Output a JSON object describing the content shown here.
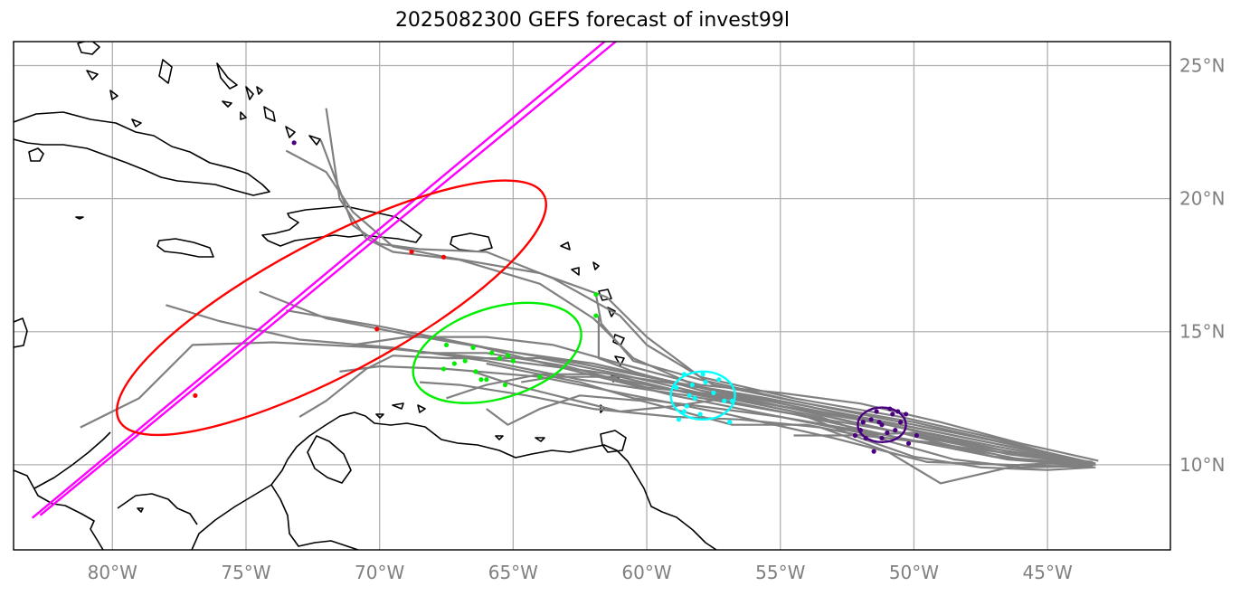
{
  "title": "2025082300 GEFS forecast of invest99l",
  "extent": {
    "lon_min": -83.7,
    "lon_max": -40.4,
    "lat_min": 6.8,
    "lat_max": 25.9
  },
  "lon_ticks": [
    {
      "value": -80,
      "label": "80°W"
    },
    {
      "value": -75,
      "label": "75°W"
    },
    {
      "value": -70,
      "label": "70°W"
    },
    {
      "value": -65,
      "label": "65°W"
    },
    {
      "value": -60,
      "label": "60°W"
    },
    {
      "value": -55,
      "label": "55°W"
    },
    {
      "value": -50,
      "label": "50°W"
    },
    {
      "value": -45,
      "label": "45°W"
    }
  ],
  "lat_ticks": [
    {
      "value": 10,
      "label": "10°N"
    },
    {
      "value": 15,
      "label": "15°N"
    },
    {
      "value": 20,
      "label": "20°N"
    },
    {
      "value": 25,
      "label": "25°N"
    }
  ],
  "colors": {
    "track": "#808080",
    "coast": "#000000",
    "grid": "#b0b0b0",
    "day1": "#4b0082",
    "day2": "#00ffff",
    "day3": "#00ee00",
    "day4": "#ff0000",
    "outlier": "#ff00ff"
  },
  "tracks": [
    [
      [
        -43.3,
        10.1
      ],
      [
        -46.5,
        10.5
      ],
      [
        -50,
        11.3
      ],
      [
        -54,
        12.2
      ],
      [
        -58,
        12.9
      ],
      [
        -62,
        13.5
      ],
      [
        -66,
        14
      ],
      [
        -70,
        14.4
      ],
      [
        -74,
        14.6
      ],
      [
        -77,
        14.5
      ],
      [
        -79,
        12.5
      ],
      [
        -81.2,
        11.4
      ]
    ],
    [
      [
        -43.5,
        9.9
      ],
      [
        -47,
        10.3
      ],
      [
        -51,
        11.1
      ],
      [
        -55,
        11.8
      ],
      [
        -59,
        12.6
      ],
      [
        -63,
        13.6
      ],
      [
        -66.5,
        14.5
      ],
      [
        -70,
        15.2
      ],
      [
        -73.5,
        15.8
      ]
    ],
    [
      [
        -43.2,
        10.0
      ],
      [
        -47,
        10.7
      ],
      [
        -51,
        11.5
      ],
      [
        -55,
        12.3
      ],
      [
        -58.5,
        13.0
      ],
      [
        -62,
        13.8
      ],
      [
        -65.5,
        14.3
      ],
      [
        -69,
        14.9
      ],
      [
        -72,
        15.5
      ],
      [
        -74.5,
        16.5
      ]
    ],
    [
      [
        -43.4,
        9.95
      ],
      [
        -46.5,
        10.2
      ],
      [
        -50.5,
        11.0
      ],
      [
        -54.5,
        11.9
      ],
      [
        -58.5,
        12.6
      ],
      [
        -62.5,
        13.2
      ],
      [
        -66,
        13.9
      ],
      [
        -69.5,
        14.4
      ],
      [
        -73,
        14.7
      ],
      [
        -76,
        15.4
      ],
      [
        -78,
        16.0
      ]
    ],
    [
      [
        -43.3,
        10.05
      ],
      [
        -47,
        10.8
      ],
      [
        -51,
        11.6
      ],
      [
        -55,
        12.2
      ],
      [
        -58,
        12.7
      ],
      [
        -61,
        13.4
      ],
      [
        -64,
        14.0
      ],
      [
        -67.5,
        14.0
      ],
      [
        -69.5,
        14.1
      ],
      [
        -70.5,
        13.6
      ],
      [
        -72,
        12.4
      ],
      [
        -73,
        11.8
      ]
    ],
    [
      [
        -43.5,
        10.1
      ],
      [
        -47.5,
        10.9
      ],
      [
        -51.5,
        11.7
      ],
      [
        -55.5,
        12.5
      ],
      [
        -59,
        13.1
      ],
      [
        -62.5,
        13.8
      ],
      [
        -66,
        14.4
      ],
      [
        -69,
        15.0
      ]
    ],
    [
      [
        -43.2,
        9.9
      ],
      [
        -46.5,
        10.0
      ],
      [
        -49.5,
        10.1
      ],
      [
        -53,
        11.0
      ],
      [
        -57,
        11.9
      ],
      [
        -60.5,
        12.6
      ],
      [
        -64,
        13.3
      ],
      [
        -67.5,
        13.6
      ],
      [
        -70,
        13.7
      ],
      [
        -71.5,
        13.5
      ]
    ],
    [
      [
        -43.4,
        10.0
      ],
      [
        -47,
        10.6
      ],
      [
        -51,
        11.3
      ],
      [
        -55,
        12.0
      ],
      [
        -58.5,
        12.7
      ],
      [
        -61,
        13.3
      ],
      [
        -63.5,
        13.3
      ],
      [
        -64.7,
        13.1
      ]
    ],
    [
      [
        -43.3,
        10.0
      ],
      [
        -47,
        10.5
      ],
      [
        -51,
        11.3
      ],
      [
        -54.5,
        12.1
      ],
      [
        -58,
        12.8
      ],
      [
        -60.5,
        13.5
      ],
      [
        -61.8,
        14.0
      ],
      [
        -61.8,
        15.2
      ],
      [
        -61.8,
        15.6
      ]
    ],
    [
      [
        -43.5,
        10.1
      ],
      [
        -47,
        10.9
      ],
      [
        -50.5,
        11.6
      ],
      [
        -54.5,
        12.4
      ],
      [
        -58,
        13.2
      ],
      [
        -60.5,
        13.9
      ],
      [
        -61.7,
        15.3
      ],
      [
        -61.9,
        16.4
      ]
    ],
    [
      [
        -43.3,
        10.0
      ],
      [
        -47,
        11.0
      ],
      [
        -50.5,
        11.8
      ],
      [
        -54.5,
        12.5
      ],
      [
        -58,
        13.3
      ],
      [
        -60,
        14.8
      ],
      [
        -61.5,
        16.3
      ],
      [
        -64,
        17.2
      ],
      [
        -67.5,
        17.8
      ],
      [
        -69.5,
        18.2
      ],
      [
        -71,
        19.5
      ],
      [
        -72,
        21.0
      ],
      [
        -73.5,
        21.8
      ]
    ],
    [
      [
        -43.2,
        10.05
      ],
      [
        -46.5,
        10.8
      ],
      [
        -50,
        11.6
      ],
      [
        -54,
        12.3
      ],
      [
        -57.5,
        13.0
      ],
      [
        -60,
        14.5
      ],
      [
        -61,
        15.6
      ],
      [
        -63.5,
        17.0
      ],
      [
        -66,
        18.0
      ],
      [
        -68.5,
        18.1
      ],
      [
        -70,
        18.3
      ],
      [
        -71,
        19.0
      ],
      [
        -72.2,
        22.2
      ]
    ],
    [
      [
        -43.4,
        10.0
      ],
      [
        -47,
        10.6
      ],
      [
        -51,
        11.5
      ],
      [
        -55,
        12.2
      ],
      [
        -58,
        12.9
      ],
      [
        -60.5,
        14.0
      ],
      [
        -62,
        15.5
      ],
      [
        -64,
        16.8
      ],
      [
        -67,
        17.7
      ],
      [
        -69.5,
        18.0
      ],
      [
        -70.5,
        18.5
      ],
      [
        -71.5,
        20.0
      ],
      [
        -72,
        23.4
      ]
    ],
    [
      [
        -43.3,
        9.9
      ],
      [
        -45,
        9.8
      ],
      [
        -47.5,
        9.9
      ],
      [
        -50,
        10.3
      ],
      [
        -52,
        11.0
      ],
      [
        -54.5,
        12.0
      ],
      [
        -57,
        12.5
      ],
      [
        -59,
        12.2
      ],
      [
        -61,
        12.0
      ],
      [
        -63,
        12.5
      ],
      [
        -65,
        13.0
      ],
      [
        -66.5,
        13.5
      ]
    ],
    [
      [
        -43.5,
        10.1
      ],
      [
        -46,
        10.0
      ],
      [
        -49,
        9.3
      ],
      [
        -51,
        10.5
      ],
      [
        -53.5,
        11.4
      ],
      [
        -56.5,
        11.7
      ],
      [
        -59,
        11.8
      ],
      [
        -62,
        12.1
      ],
      [
        -64.5,
        12.6
      ],
      [
        -67,
        13.0
      ],
      [
        -68.5,
        13.1
      ]
    ],
    [
      [
        -43.2,
        10.0
      ],
      [
        -46,
        10.2
      ],
      [
        -49,
        10.8
      ],
      [
        -52,
        11.1
      ],
      [
        -54,
        11.5
      ],
      [
        -56.8,
        11.5
      ],
      [
        -58.3,
        11.9
      ],
      [
        -60.2,
        12.4
      ],
      [
        -62.5,
        12.6
      ],
      [
        -64,
        12.1
      ],
      [
        -65.2,
        11.5
      ],
      [
        -66,
        12.1
      ]
    ],
    [
      [
        -43.3,
        10.0
      ],
      [
        -46.5,
        10.4
      ],
      [
        -50,
        11.2
      ],
      [
        -52.5,
        11.1
      ],
      [
        -54.5,
        11.1
      ]
    ],
    [
      [
        -43.4,
        10.0
      ],
      [
        -47,
        10.5
      ],
      [
        -51,
        11.0
      ],
      [
        -55,
        11.8
      ],
      [
        -58,
        12.2
      ],
      [
        -60.5,
        12.5
      ],
      [
        -62.5,
        13.1
      ],
      [
        -64.5,
        13.5
      ],
      [
        -66,
        13.8
      ]
    ],
    [
      [
        -43.1,
        10.15
      ],
      [
        -46,
        10.8
      ],
      [
        -49,
        11.6
      ],
      [
        -52,
        12.3
      ],
      [
        -55,
        12.7
      ],
      [
        -58,
        13.0
      ],
      [
        -61,
        13.8
      ],
      [
        -63.5,
        14.5
      ],
      [
        -66,
        14.8
      ],
      [
        -69,
        14.8
      ],
      [
        -71,
        14.5
      ]
    ],
    [
      [
        -43.3,
        9.95
      ],
      [
        -46,
        9.9
      ],
      [
        -48.5,
        10.2
      ],
      [
        -51,
        10.9
      ],
      [
        -53.5,
        11.8
      ],
      [
        -56.5,
        12.4
      ],
      [
        -59.5,
        12.9
      ],
      [
        -62,
        13.4
      ],
      [
        -64,
        13.4
      ],
      [
        -66,
        13.0
      ],
      [
        -67.5,
        12.5
      ]
    ],
    [
      [
        -43.2,
        10.0
      ],
      [
        -47,
        10.3
      ],
      [
        -50.5,
        11.2
      ],
      [
        -54,
        12.0
      ],
      [
        -57,
        12.6
      ],
      [
        -60,
        12.9
      ],
      [
        -63,
        13.7
      ],
      [
        -66,
        14.2
      ],
      [
        -68.5,
        14.2
      ]
    ]
  ],
  "outlier_tracks": [
    [
      [
        -83.0,
        8.0
      ],
      [
        -61.1,
        26.3
      ]
    ],
    [
      [
        -82.7,
        8.1
      ],
      [
        -60.8,
        26.2
      ]
    ]
  ],
  "day_points": {
    "day1": [
      [
        -51.2,
        11.5
      ],
      [
        -51.6,
        11.7
      ],
      [
        -50.8,
        11.9
      ],
      [
        -51.0,
        11.2
      ],
      [
        -52.0,
        11.3
      ],
      [
        -50.5,
        11.6
      ],
      [
        -51.4,
        12.0
      ],
      [
        -50.7,
        11.3
      ],
      [
        -51.8,
        11.0
      ],
      [
        -50.3,
        11.9
      ],
      [
        -51.2,
        11.0
      ],
      [
        -52.2,
        11.1
      ],
      [
        -50.9,
        12.1
      ],
      [
        -51.5,
        10.5
      ],
      [
        -50.2,
        10.8
      ],
      [
        -49.9,
        11.1
      ],
      [
        -50.6,
        12.0
      ],
      [
        -51.9,
        11.6
      ],
      [
        -51.3,
        11.6
      ],
      [
        -73.2,
        22.1
      ]
    ],
    "day2": [
      [
        -58.2,
        12.5
      ],
      [
        -57.8,
        13.1
      ],
      [
        -58.5,
        12.2
      ],
      [
        -57.5,
        12.7
      ],
      [
        -58.9,
        12.9
      ],
      [
        -57.1,
        12.4
      ],
      [
        -58.0,
        11.9
      ],
      [
        -58.6,
        13.4
      ],
      [
        -57.3,
        13.2
      ],
      [
        -58.4,
        12.6
      ],
      [
        -56.8,
        12.4
      ],
      [
        -58.8,
        11.7
      ],
      [
        -56.9,
        11.6
      ],
      [
        -57.9,
        13.4
      ],
      [
        -58.6,
        12.0
      ],
      [
        -58.3,
        13.0
      ]
    ],
    "day3": [
      [
        -67.5,
        14.5
      ],
      [
        -66.5,
        14.4
      ],
      [
        -66.2,
        13.2
      ],
      [
        -65.8,
        14.2
      ],
      [
        -67.2,
        13.8
      ],
      [
        -65.5,
        14.0
      ],
      [
        -66.4,
        13.5
      ],
      [
        -65.0,
        13.9
      ],
      [
        -67.6,
        13.6
      ],
      [
        -66.0,
        13.2
      ],
      [
        -65.3,
        13.0
      ],
      [
        -64.0,
        13.3
      ],
      [
        -61.9,
        15.6
      ],
      [
        -61.9,
        16.4
      ],
      [
        -65.2,
        14.1
      ],
      [
        -66.8,
        13.9
      ]
    ],
    "day4": [
      [
        -76.9,
        12.6
      ],
      [
        -70.1,
        15.1
      ],
      [
        -68.8,
        18.0
      ],
      [
        -67.6,
        17.8
      ]
    ]
  },
  "ellipses": [
    {
      "key": "day1",
      "cx": -51.2,
      "cy": 11.5,
      "rx": 0.9,
      "ry": 0.65,
      "angle": 0
    },
    {
      "key": "day2",
      "cx": -57.9,
      "cy": 12.6,
      "rx": 1.2,
      "ry": 0.9,
      "angle": 0
    },
    {
      "key": "day3",
      "cx": -65.6,
      "cy": 14.2,
      "rx": 3.25,
      "ry": 1.7,
      "angle": -17
    },
    {
      "key": "day4",
      "cx": -71.8,
      "cy": 15.9,
      "rx": 9.0,
      "ry": 2.5,
      "angle": -28
    }
  ]
}
